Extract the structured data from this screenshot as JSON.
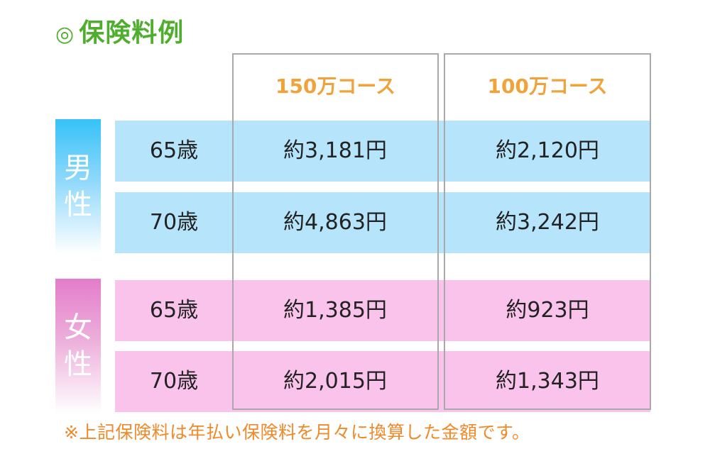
{
  "title": {
    "mark": "◎",
    "text": "保険料例"
  },
  "columns": [
    "150万コース",
    "100万コース"
  ],
  "groups": [
    {
      "label_chars": [
        "男",
        "性"
      ],
      "rows": [
        {
          "age": "65歳",
          "values": [
            "約3,181円",
            "約2,120円"
          ]
        },
        {
          "age": "70歳",
          "values": [
            "約4,863円",
            "約3,242円"
          ]
        }
      ]
    },
    {
      "label_chars": [
        "女",
        "性"
      ],
      "rows": [
        {
          "age": "65歳",
          "values": [
            "約1,385円",
            "約923円"
          ]
        },
        {
          "age": "70歳",
          "values": [
            "約2,015円",
            "約1,343円"
          ]
        }
      ]
    }
  ],
  "note": "※上記保険料は年払い保険料を月々に換算した金額です。",
  "colors": {
    "title": "#4fae2e",
    "header": "#f0a33a",
    "male_row": "#b5e4fb",
    "female_row": "#fac3ec",
    "male_label": "#36c2f7",
    "female_label": "#e47ccb",
    "note": "#ef8a2b"
  }
}
